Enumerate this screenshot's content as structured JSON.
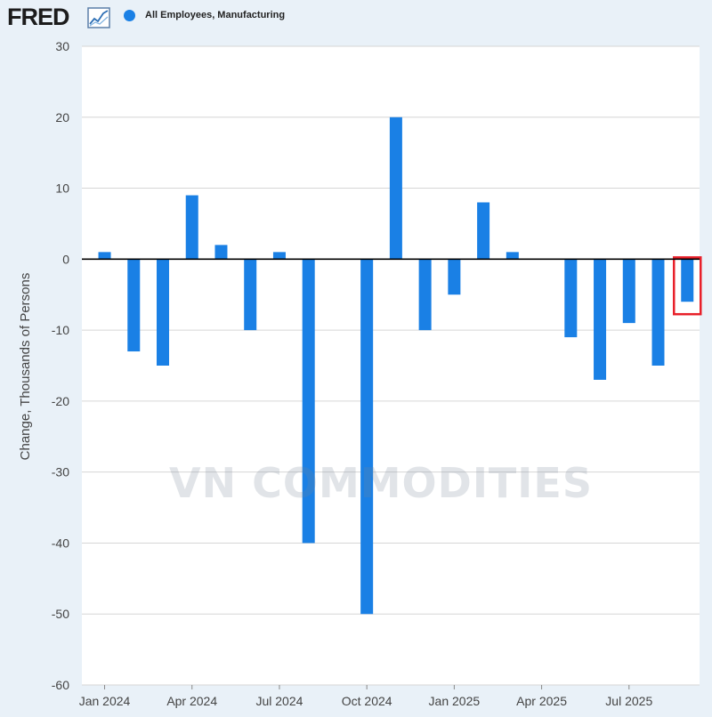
{
  "header": {
    "logo_text": "FRED",
    "legend_label": "All Employees, Manufacturing",
    "series_color": "#1a80e5"
  },
  "watermark": {
    "text": "VN COMMODITIES"
  },
  "chart_data": {
    "type": "bar",
    "ylabel": "Change, Thousands of Persons",
    "ylim": [
      -60,
      30
    ],
    "yticks": [
      30,
      20,
      10,
      0,
      -10,
      -20,
      -30,
      -40,
      -50,
      -60
    ],
    "x_ticks": [
      "Jan 2024",
      "Apr 2024",
      "Jul 2024",
      "Oct 2024",
      "Jan 2025",
      "Apr 2025",
      "Jul 2025"
    ],
    "categories": [
      "Jan 2024",
      "Feb 2024",
      "Mar 2024",
      "Apr 2024",
      "May 2024",
      "Jun 2024",
      "Jul 2024",
      "Aug 2024",
      "Sep 2024",
      "Oct 2024",
      "Nov 2024",
      "Dec 2024",
      "Jan 2025",
      "Feb 2025",
      "Mar 2025",
      "Apr 2025",
      "May 2025",
      "Jun 2025",
      "Jul 2025",
      "Aug 2025"
    ],
    "series": [
      {
        "name": "All Employees, Manufacturing",
        "values": [
          1,
          -13,
          -15,
          9,
          2,
          -10,
          1,
          -40,
          0,
          -50,
          20,
          -10,
          -5,
          8,
          1,
          0,
          -11,
          -17,
          -9,
          -15
        ]
      }
    ],
    "extra_bar": {
      "category": "Sep 2025",
      "value": -6,
      "highlighted": true
    },
    "grid": true,
    "legend": "top-left",
    "bar_color": "#1a80e5",
    "highlight_color": "#e8202a"
  }
}
